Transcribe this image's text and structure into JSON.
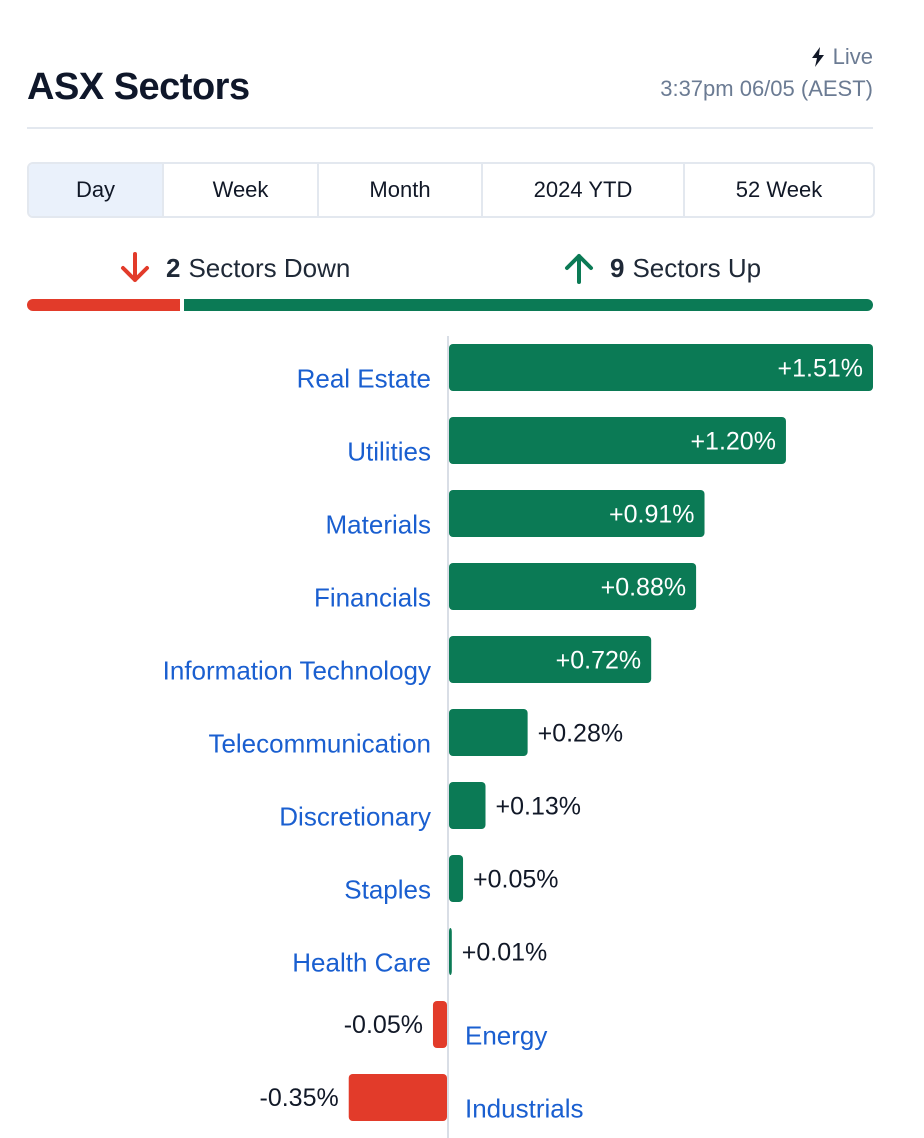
{
  "header": {
    "title": "ASX Sectors",
    "live_label": "Live",
    "timestamp": "3:37pm 06/05 (AEST)"
  },
  "tabs": [
    {
      "label": "Day",
      "active": true
    },
    {
      "label": "Week",
      "active": false
    },
    {
      "label": "Month",
      "active": false
    },
    {
      "label": "2024 YTD",
      "active": false
    },
    {
      "label": "52 Week",
      "active": false
    }
  ],
  "summary": {
    "down_count": "2",
    "down_label": "Sectors Down",
    "up_count": "9",
    "up_label": "Sectors Up"
  },
  "colors": {
    "up": "#0b7a55",
    "down": "#e23b2a",
    "label": "#1a5fd0",
    "muted": "#6b7b93"
  },
  "chart_data": {
    "type": "bar",
    "orientation": "horizontal",
    "categories": [
      "Real Estate",
      "Utilities",
      "Materials",
      "Financials",
      "Information Technology",
      "Telecommunication",
      "Discretionary",
      "Staples",
      "Health Care",
      "Energy",
      "Industrials"
    ],
    "values": [
      1.51,
      1.2,
      0.91,
      0.88,
      0.72,
      0.28,
      0.13,
      0.05,
      0.01,
      -0.05,
      -0.35
    ],
    "labels": [
      "+1.51%",
      "+1.20%",
      "+0.91%",
      "+0.88%",
      "+0.72%",
      "+0.28%",
      "+0.13%",
      "+0.05%",
      "+0.01%",
      "-0.05%",
      "-0.35%"
    ],
    "title": "",
    "xlabel": "",
    "ylabel": "",
    "unit": "%"
  }
}
